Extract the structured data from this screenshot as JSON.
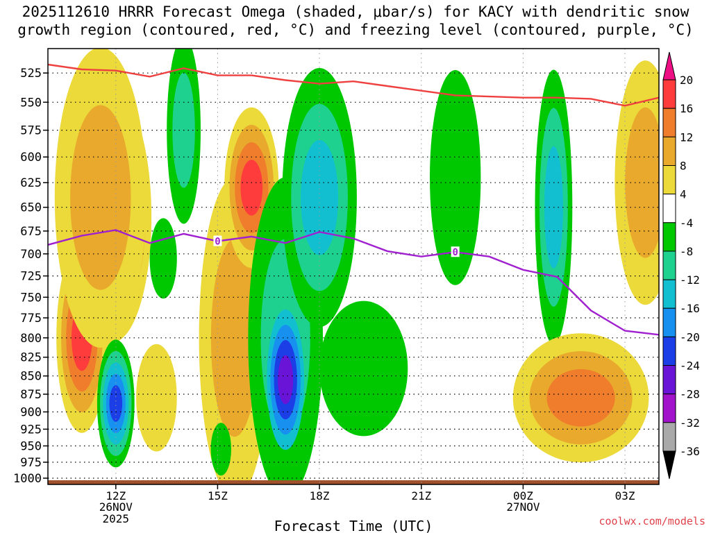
{
  "title": {
    "line1": "2025112610 HRRR Forecast Omega (shaded, μbar/s) for KACY with dendritic snow",
    "line2": "growth region (contoured, red, °C) and freezing level (contoured, purple, °C)"
  },
  "credit": "coolwx.com/models",
  "chart_data": {
    "type": "contour",
    "title": "2025112610 HRRR Forecast Omega (shaded, μbar/s) for KACY with dendritic snow growth region (contoured, red, °C) and freezing level (contoured, purple, °C)",
    "xlabel": "Forecast Time (UTC)",
    "ylabel": "",
    "xlim_hours": [
      8.0,
      26.0
    ],
    "ylim_hpa": [
      1010,
      505
    ],
    "y_scale": "log-pressure",
    "y_ticks": [
      525,
      550,
      575,
      600,
      625,
      650,
      675,
      700,
      725,
      750,
      775,
      800,
      825,
      850,
      875,
      900,
      925,
      950,
      975,
      1000
    ],
    "x_ticks": [
      {
        "hour": 10,
        "label": "12Z",
        "sub1": "26NOV",
        "sub2": "2025"
      },
      {
        "hour": 13,
        "label": "15Z",
        "sub1": "",
        "sub2": ""
      },
      {
        "hour": 16,
        "label": "18Z",
        "sub1": "",
        "sub2": ""
      },
      {
        "hour": 19,
        "label": "21Z",
        "sub1": "",
        "sub2": ""
      },
      {
        "hour": 22,
        "label": "00Z",
        "sub1": "27NOV",
        "sub2": ""
      },
      {
        "hour": 25,
        "label": "03Z",
        "sub1": "",
        "sub2": ""
      }
    ],
    "colorbar": {
      "levels": [
        20,
        16,
        12,
        8,
        4,
        -4,
        -8,
        -12,
        -16,
        -20,
        -24,
        -28,
        -32,
        -36
      ],
      "colors": [
        "#ee0f84",
        "#ff3c3c",
        "#ef7d2b",
        "#e8a92d",
        "#ecd93a",
        "#ffffff",
        "#00c800",
        "#1fd18f",
        "#12bfd0",
        "#1790ef",
        "#1b3ee6",
        "#6a14d7",
        "#a214cc",
        "#a9a9a9",
        "#000000"
      ]
    },
    "freezing_level": {
      "color": "#a020d0",
      "label": "0",
      "points": [
        [
          8.0,
          690
        ],
        [
          9.0,
          680
        ],
        [
          10.0,
          674
        ],
        [
          11.0,
          688
        ],
        [
          12.0,
          678
        ],
        [
          13.0,
          686
        ],
        [
          14.0,
          681
        ],
        [
          15.0,
          688
        ],
        [
          16.0,
          676
        ],
        [
          17.0,
          683
        ],
        [
          18.0,
          697
        ],
        [
          19.0,
          703
        ],
        [
          20.0,
          698
        ],
        [
          21.0,
          703
        ],
        [
          22.0,
          718
        ],
        [
          23.0,
          726
        ],
        [
          24.0,
          766
        ],
        [
          25.0,
          791
        ],
        [
          26.0,
          796
        ]
      ],
      "label_hours": [
        13.0,
        20.0
      ]
    },
    "dgz_top": {
      "color": "#ef4040",
      "points": [
        [
          8.0,
          518
        ],
        [
          9.0,
          522
        ],
        [
          10.0,
          523
        ],
        [
          11.0,
          528
        ],
        [
          12.0,
          521
        ],
        [
          13.0,
          527
        ],
        [
          14.0,
          527
        ],
        [
          15.0,
          531
        ],
        [
          16.0,
          534
        ],
        [
          17.0,
          532
        ],
        [
          18.0,
          536
        ],
        [
          19.0,
          540
        ],
        [
          20.0,
          544
        ],
        [
          21.0,
          545
        ],
        [
          22.0,
          546
        ],
        [
          23.0,
          546
        ],
        [
          24.0,
          547
        ],
        [
          25.0,
          553
        ],
        [
          26.0,
          546
        ]
      ]
    },
    "terrain_hpa": 1010,
    "features": [
      {
        "t": 9.9,
        "p": 660,
        "rt": 1.15,
        "rp": 130,
        "rx": 1.15,
        "skew": 0,
        "levels": [
          4,
          8,
          12,
          16,
          20
        ]
      },
      {
        "t": 9.0,
        "p": 800,
        "rt": 0.75,
        "rp": 120,
        "rx": 0.75,
        "skew": 0,
        "levels": [
          4,
          8,
          12,
          16
        ]
      },
      {
        "t": 9.55,
        "p": 640,
        "rt": 1.35,
        "rp": 150,
        "rx": 1.35,
        "skew": 0,
        "levels": [
          4,
          8
        ]
      },
      {
        "t": 10.0,
        "p": 888,
        "rt": 0.55,
        "rp": 90,
        "rx": 0.55,
        "skew": 0,
        "levels": [
          -4,
          -8,
          -12,
          -16,
          -20
        ]
      },
      {
        "t": 11.4,
        "p": 705,
        "rt": 0.4,
        "rp": 45,
        "rx": 0.4,
        "skew": 0,
        "levels": [
          -4
        ]
      },
      {
        "t": 11.2,
        "p": 880,
        "rt": 0.6,
        "rp": 75,
        "rx": 0.6,
        "skew": 0,
        "levels": [
          4
        ]
      },
      {
        "t": 12.0,
        "p": 575,
        "rt": 0.5,
        "rp": 85,
        "rx": 0.5,
        "skew": 0,
        "levels": [
          -4,
          -8
        ]
      },
      {
        "t": 13.5,
        "p": 800,
        "rt": 1.05,
        "rp": 200,
        "rx": 1.05,
        "skew": 0,
        "levels": [
          4,
          8
        ]
      },
      {
        "t": 14.0,
        "p": 630,
        "rt": 0.8,
        "rp": 80,
        "rx": 0.8,
        "skew": 0,
        "levels": [
          4,
          8,
          12,
          16
        ]
      },
      {
        "t": 13.1,
        "p": 955,
        "rt": 0.3,
        "rp": 40,
        "rx": 0.3,
        "skew": 0,
        "levels": [
          -4
        ]
      },
      {
        "t": 15.0,
        "p": 800,
        "rt": 1.1,
        "rp": 200,
        "rx": 1.1,
        "skew": 0,
        "levels": [
          -4,
          -8
        ]
      },
      {
        "t": 15.0,
        "p": 855,
        "rt": 0.55,
        "rp": 95,
        "rx": 0.55,
        "skew": 0,
        "levels": [
          -12,
          -16,
          -20,
          -24
        ]
      },
      {
        "t": 16.0,
        "p": 640,
        "rt": 1.1,
        "rp": 130,
        "rx": 1.1,
        "skew": 0,
        "levels": [
          -4,
          -8,
          -12
        ]
      },
      {
        "t": 17.3,
        "p": 840,
        "rt": 1.3,
        "rp": 90,
        "rx": 1.3,
        "skew": 0,
        "levels": [
          -4
        ]
      },
      {
        "t": 20.0,
        "p": 620,
        "rt": 0.75,
        "rp": 105,
        "rx": 0.75,
        "skew": 0,
        "levels": [
          -4
        ]
      },
      {
        "t": 22.9,
        "p": 650,
        "rt": 0.55,
        "rp": 140,
        "rx": 0.55,
        "skew": 0,
        "levels": [
          -4,
          -8,
          -12
        ]
      },
      {
        "t": 23.7,
        "p": 880,
        "rt": 2.0,
        "rp": 90,
        "rx": 2.0,
        "skew": 0,
        "levels": [
          4,
          8,
          12
        ]
      },
      {
        "t": 25.6,
        "p": 625,
        "rt": 0.9,
        "rp": 120,
        "rx": 0.9,
        "skew": 0,
        "levels": [
          4,
          8
        ]
      }
    ]
  }
}
